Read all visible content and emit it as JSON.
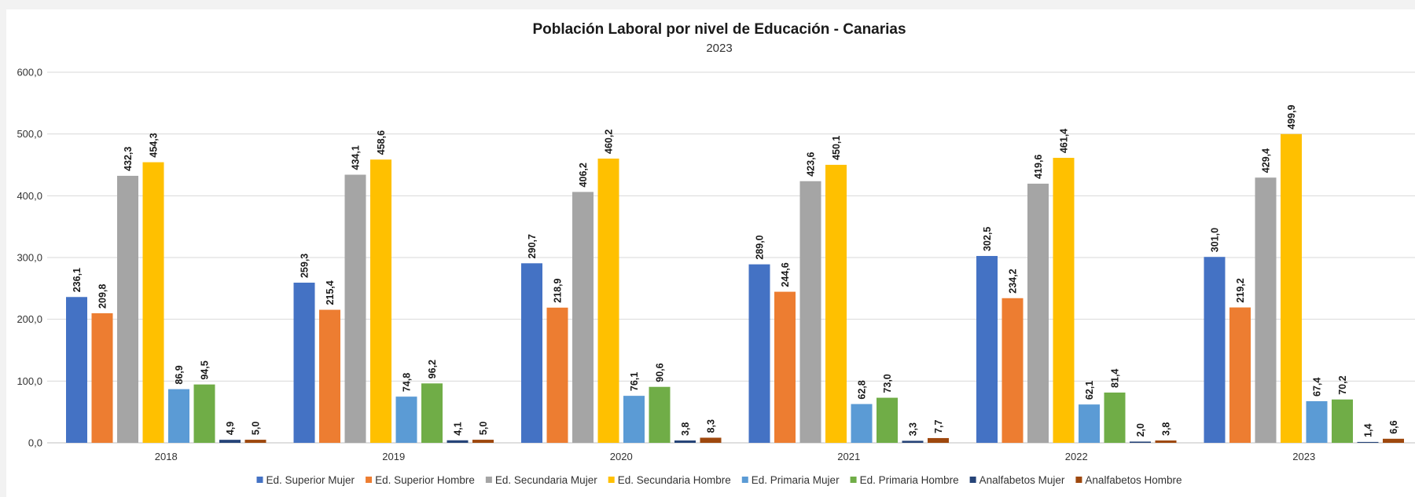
{
  "chart_data": {
    "type": "bar",
    "title": "Población Laboral por nivel de Educación - Canarias",
    "subtitle": "2023",
    "categories": [
      "2018",
      "2019",
      "2020",
      "2021",
      "2022",
      "2023"
    ],
    "ylim": [
      0,
      600
    ],
    "yticks": [
      "0,0",
      "100,0",
      "200,0",
      "300,0",
      "400,0",
      "500,0",
      "600,0"
    ],
    "grid": true,
    "legend_position": "bottom",
    "series": [
      {
        "name": "Ed. Superior Mujer",
        "color": "#4472c4",
        "values": [
          236.1,
          259.3,
          290.7,
          289.0,
          302.5,
          301.0
        ],
        "labels": [
          "236,1",
          "259,3",
          "290,7",
          "289,0",
          "302,5",
          "301,0"
        ]
      },
      {
        "name": "Ed. Superior Hombre",
        "color": "#ed7d31",
        "values": [
          209.8,
          215.4,
          218.9,
          244.6,
          234.2,
          219.2
        ],
        "labels": [
          "209,8",
          "215,4",
          "218,9",
          "244,6",
          "234,2",
          "219,2"
        ]
      },
      {
        "name": "Ed. Secundaria Mujer",
        "color": "#a5a5a5",
        "values": [
          432.3,
          434.1,
          406.2,
          423.6,
          419.6,
          429.4
        ],
        "labels": [
          "432,3",
          "434,1",
          "406,2",
          "423,6",
          "419,6",
          "429,4"
        ]
      },
      {
        "name": "Ed. Secundaria Hombre",
        "color": "#ffc000",
        "values": [
          454.3,
          458.6,
          460.2,
          450.1,
          461.4,
          499.9
        ],
        "labels": [
          "454,3",
          "458,6",
          "460,2",
          "450,1",
          "461,4",
          "499,9"
        ]
      },
      {
        "name": "Ed. Primaria Mujer",
        "color": "#5b9bd5",
        "values": [
          86.9,
          74.8,
          76.1,
          62.8,
          62.1,
          67.4
        ],
        "labels": [
          "86,9",
          "74,8",
          "76,1",
          "62,8",
          "62,1",
          "67,4"
        ]
      },
      {
        "name": "Ed. Primaria Hombre",
        "color": "#70ad47",
        "values": [
          94.5,
          96.2,
          90.6,
          73.0,
          81.4,
          70.2
        ],
        "labels": [
          "94,5",
          "96,2",
          "90,6",
          "73,0",
          "81,4",
          "70,2"
        ]
      },
      {
        "name": "Analfabetos Mujer",
        "color": "#264478",
        "values": [
          4.9,
          4.1,
          3.8,
          3.3,
          2.0,
          1.4
        ],
        "labels": [
          "4,9",
          "4,1",
          "3,8",
          "3,3",
          "2,0",
          "1,4"
        ]
      },
      {
        "name": "Analfabetos Hombre",
        "color": "#9e480e",
        "values": [
          5.0,
          5.0,
          8.3,
          7.7,
          3.8,
          6.6
        ],
        "labels": [
          "5,0",
          "5,0",
          "8,3",
          "7,7",
          "3,8",
          "6,6"
        ]
      }
    ]
  }
}
